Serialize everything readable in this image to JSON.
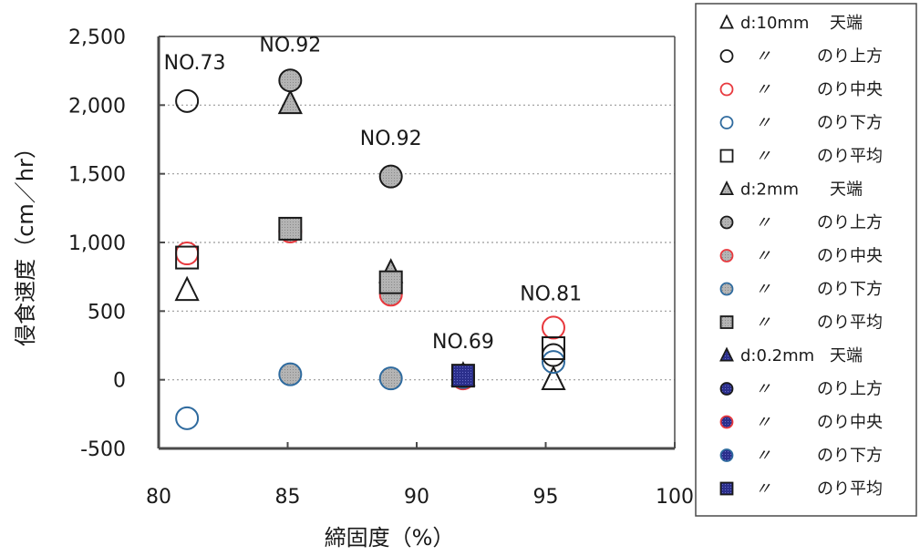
{
  "chart_data": {
    "type": "scatter",
    "xlabel": "締固度（%）",
    "ylabel": "侵食速度（cm／hr）",
    "xlim": [
      80,
      100
    ],
    "ylim": [
      -500,
      2500
    ],
    "xticks": [
      "80",
      "85",
      "90",
      "95",
      "100"
    ],
    "yticks": [
      "-500",
      "0",
      "500",
      "1,000",
      "1,500",
      "2,000",
      "2,500"
    ],
    "grid": "horizontal-dotted",
    "legend_position": "right",
    "annotations": [
      {
        "text": "NO.73",
        "x": 81.4,
        "y": 2260
      },
      {
        "text": "NO.92",
        "x": 85.1,
        "y": 2390
      },
      {
        "text": "NO.92",
        "x": 89.0,
        "y": 1710
      },
      {
        "text": "NO.69",
        "x": 91.8,
        "y": 230
      },
      {
        "text": "NO.81",
        "x": 95.2,
        "y": 580
      }
    ],
    "series": [
      {
        "name": "d:10mm　天端",
        "marker": "triangle",
        "style": "open",
        "color": "#1a1a1a",
        "points": [
          {
            "x": 81.1,
            "y": 650
          },
          {
            "x": 95.3,
            "y": 0
          }
        ]
      },
      {
        "name": "d:10mm　のり上方",
        "marker": "circle",
        "style": "open",
        "color": "#1a1a1a",
        "points": [
          {
            "x": 81.1,
            "y": 2030
          },
          {
            "x": 95.3,
            "y": 180
          }
        ]
      },
      {
        "name": "d:10mm　のり中央",
        "marker": "circle",
        "style": "open",
        "color": "#e8383d",
        "points": [
          {
            "x": 81.1,
            "y": 920
          },
          {
            "x": 95.3,
            "y": 380
          }
        ]
      },
      {
        "name": "d:10mm　のり下方",
        "marker": "circle",
        "style": "open",
        "color": "#2e6a9e",
        "points": [
          {
            "x": 81.1,
            "y": -280
          },
          {
            "x": 95.3,
            "y": 130
          }
        ]
      },
      {
        "name": "d:10mm　のり平均",
        "marker": "square",
        "style": "open",
        "color": "#1a1a1a",
        "points": [
          {
            "x": 81.1,
            "y": 890
          },
          {
            "x": 95.3,
            "y": 230
          }
        ]
      },
      {
        "name": "d:2mm　天端",
        "marker": "triangle",
        "style": "gray",
        "color": "#1a1a1a",
        "points": [
          {
            "x": 85.1,
            "y": 2010
          },
          {
            "x": 89.0,
            "y": 780
          }
        ]
      },
      {
        "name": "d:2mm　のり上方",
        "marker": "circle",
        "style": "gray",
        "color": "#1a1a1a",
        "points": [
          {
            "x": 85.1,
            "y": 2180
          },
          {
            "x": 89.0,
            "y": 1480
          }
        ]
      },
      {
        "name": "d:2mm　のり中央",
        "marker": "circle",
        "style": "gray",
        "color": "#e8383d",
        "points": [
          {
            "x": 85.1,
            "y": 1080
          },
          {
            "x": 89.0,
            "y": 620
          }
        ]
      },
      {
        "name": "d:2mm　のり下方",
        "marker": "circle",
        "style": "gray",
        "color": "#2e6a9e",
        "points": [
          {
            "x": 85.1,
            "y": 40
          },
          {
            "x": 89.0,
            "y": 10
          }
        ]
      },
      {
        "name": "d:2mm　のり平均",
        "marker": "square",
        "style": "gray",
        "color": "#1a1a1a",
        "points": [
          {
            "x": 85.1,
            "y": 1100
          },
          {
            "x": 89.0,
            "y": 710
          }
        ]
      },
      {
        "name": "d:0.2mm　天端",
        "marker": "triangle",
        "style": "navy",
        "color": "#1a1a1a",
        "points": [
          {
            "x": 91.8,
            "y": 30
          }
        ]
      },
      {
        "name": "d:0.2mm　のり上方",
        "marker": "circle",
        "style": "navy",
        "color": "#1a1a1a",
        "points": [
          {
            "x": 91.8,
            "y": 30
          }
        ]
      },
      {
        "name": "d:0.2mm　のり中央",
        "marker": "circle",
        "style": "navy",
        "color": "#e8383d",
        "points": [
          {
            "x": 91.8,
            "y": 10
          }
        ]
      },
      {
        "name": "d:0.2mm　のり下方",
        "marker": "circle",
        "style": "navy",
        "color": "#2e6a9e",
        "points": [
          {
            "x": 91.8,
            "y": 20
          }
        ]
      },
      {
        "name": "d:0.2mm　のり平均",
        "marker": "square",
        "style": "navy",
        "color": "#1a1a1a",
        "points": [
          {
            "x": 91.8,
            "y": 30
          }
        ]
      }
    ]
  },
  "legend": {
    "rows": [
      {
        "symbol": "triangle",
        "style": "open",
        "color": "#1a1a1a",
        "label": "d:10mm",
        "position": "天端"
      },
      {
        "symbol": "circle",
        "style": "open",
        "color": "#1a1a1a",
        "ditto": "〃",
        "position": "のり上方"
      },
      {
        "symbol": "circle",
        "style": "open",
        "color": "#e8383d",
        "ditto": "〃",
        "position": "のり中央"
      },
      {
        "symbol": "circle",
        "style": "open",
        "color": "#2e6a9e",
        "ditto": "〃",
        "position": "のり下方"
      },
      {
        "symbol": "square",
        "style": "open",
        "color": "#1a1a1a",
        "ditto": "〃",
        "position": "のり平均"
      },
      {
        "symbol": "triangle",
        "style": "gray",
        "color": "#1a1a1a",
        "label": "d:2mm",
        "position": "天端"
      },
      {
        "symbol": "circle",
        "style": "gray",
        "color": "#1a1a1a",
        "ditto": "〃",
        "position": "のり上方"
      },
      {
        "symbol": "circle",
        "style": "gray",
        "color": "#e8383d",
        "ditto": "〃",
        "position": "のり中央"
      },
      {
        "symbol": "circle",
        "style": "gray",
        "color": "#2e6a9e",
        "ditto": "〃",
        "position": "のり下方"
      },
      {
        "symbol": "square",
        "style": "gray",
        "color": "#1a1a1a",
        "ditto": "〃",
        "position": "のり平均"
      },
      {
        "symbol": "triangle",
        "style": "navy",
        "color": "#1a1a1a",
        "label": "d:0.2mm",
        "position": "天端"
      },
      {
        "symbol": "circle",
        "style": "navy",
        "color": "#1a1a1a",
        "ditto": "〃",
        "position": "のり上方"
      },
      {
        "symbol": "circle",
        "style": "navy",
        "color": "#e8383d",
        "ditto": "〃",
        "position": "のり中央"
      },
      {
        "symbol": "circle",
        "style": "navy",
        "color": "#2e6a9e",
        "ditto": "〃",
        "position": "のり下方"
      },
      {
        "symbol": "square",
        "style": "navy",
        "color": "#1a1a1a",
        "ditto": "〃",
        "position": "のり平均"
      }
    ]
  },
  "colors": {
    "axis": "#4a4a4a",
    "grid": "#9a9a9a",
    "gray_fill": "#a8a8a8",
    "navy_fill": "#2b2f8c"
  }
}
